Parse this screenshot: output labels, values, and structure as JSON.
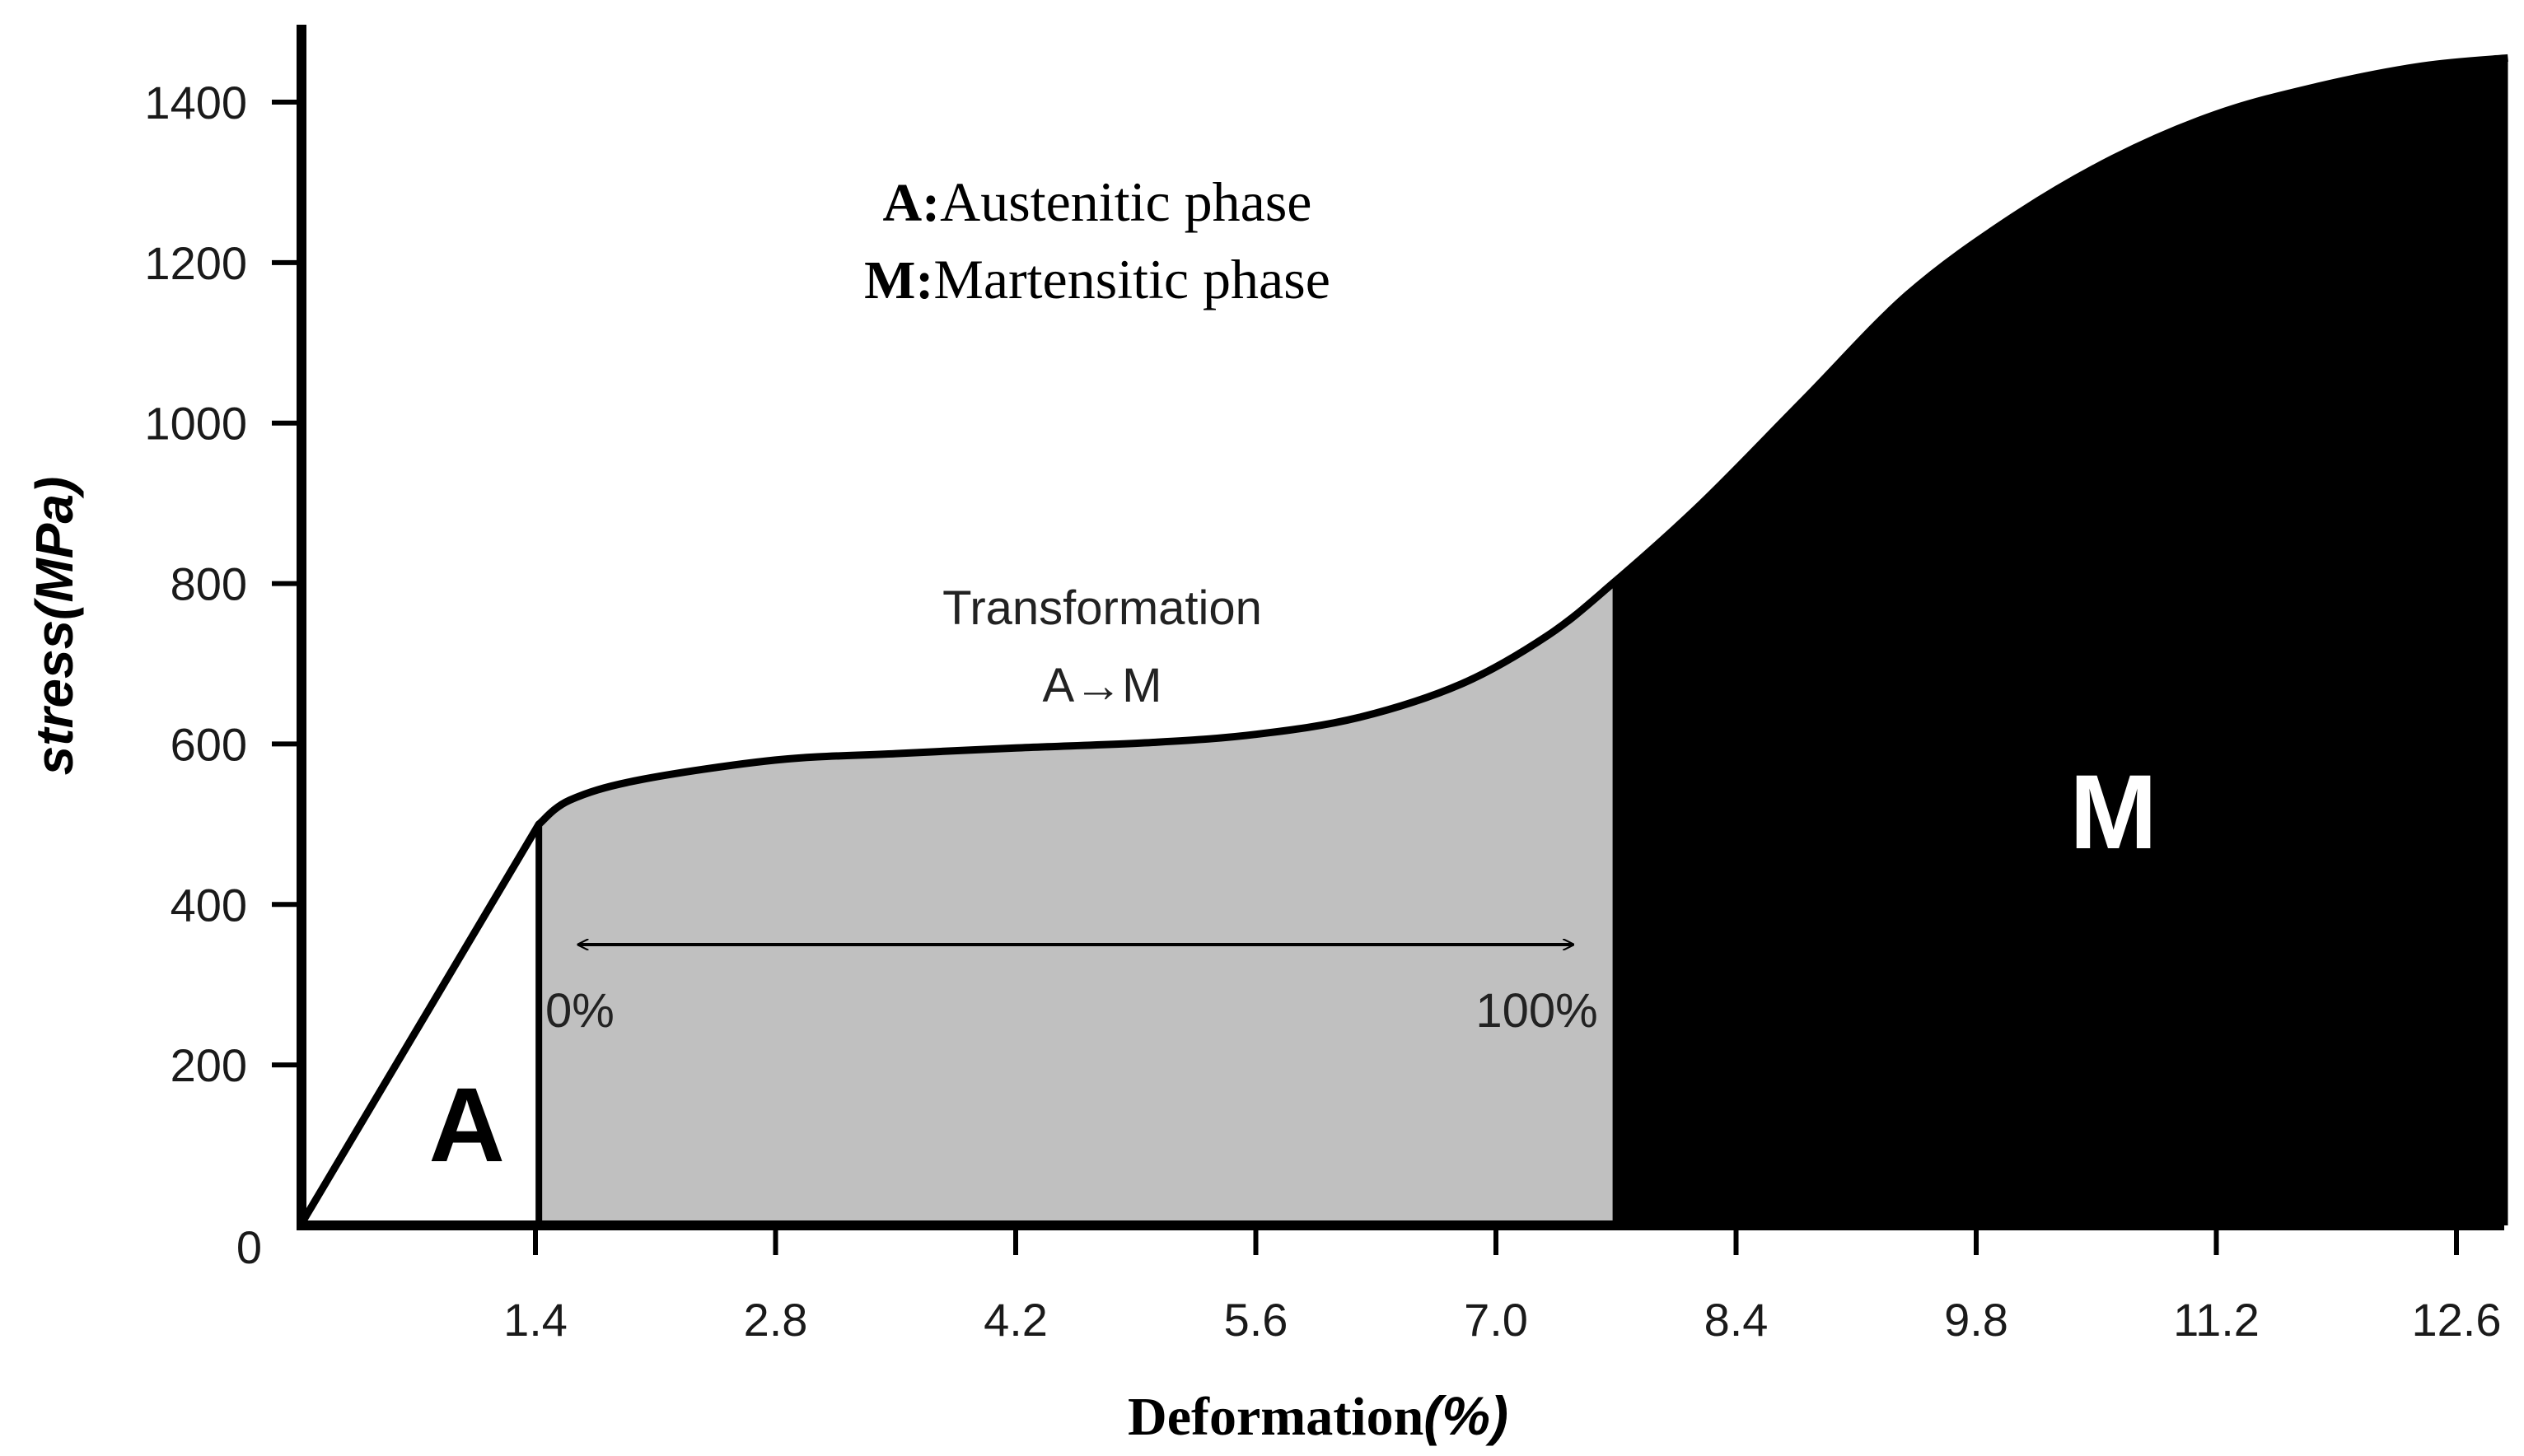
{
  "chart_data": {
    "type": "area",
    "title": "",
    "xlabel": "Deformation",
    "xlabel_unit": "(%)",
    "ylabel": "stress",
    "ylabel_unit": "(MPa)",
    "xlim": [
      0,
      13.1
    ],
    "ylim": [
      0,
      1500
    ],
    "x_ticks": [
      1.4,
      2.8,
      4.2,
      5.6,
      7.0,
      8.4,
      9.8,
      11.2,
      12.6
    ],
    "x_tick_labels": [
      "1.4",
      "2.8",
      "4.2",
      "5.6",
      "7.0",
      "8.4",
      "9.8",
      "11.2",
      "12.6"
    ],
    "y_ticks": [
      0,
      200,
      400,
      600,
      800,
      1000,
      1200,
      1400
    ],
    "y_tick_labels": [
      "0",
      "200",
      "400",
      "600",
      "800",
      "1000",
      "1200",
      "1400"
    ],
    "grid": false,
    "curve": {
      "x": [
        0.03,
        1.42,
        1.6,
        2.0,
        2.8,
        3.5,
        4.2,
        5.0,
        5.6,
        6.2,
        6.8,
        7.3,
        7.68,
        8.2,
        8.8,
        9.4,
        10.0,
        10.6,
        11.2,
        11.8,
        12.4,
        12.9
      ],
      "y": [
        0,
        500,
        530,
        555,
        580,
        588,
        595,
        602,
        612,
        633,
        675,
        735,
        800,
        900,
        1030,
        1160,
        1255,
        1330,
        1385,
        1420,
        1445,
        1455
      ]
    },
    "regions": [
      {
        "label": "A",
        "name": "Austenitic phase",
        "x_range": [
          0.03,
          1.42
        ],
        "fill": "#ffffff"
      },
      {
        "label": "Transformation A→M",
        "x_range": [
          1.42,
          7.68
        ],
        "fill": "#c0c0c0"
      },
      {
        "label": "M",
        "name": "Martensitic phase",
        "x_range": [
          7.68,
          12.9
        ],
        "fill": "#000000"
      }
    ],
    "legend": [
      {
        "key": "A",
        "sep": ":",
        "text": "Austenitic phase"
      },
      {
        "key": "M",
        "sep": ":",
        "text": "Martensitic phase"
      }
    ],
    "annotations": {
      "transformation_line1": "Transformation",
      "transformation_line2": "A→M",
      "arrow_start_label": "0%",
      "arrow_end_label": "100%",
      "arrow_y": 350,
      "arrow_x_range": [
        1.65,
        7.45
      ],
      "region_a_label": "A",
      "region_m_label": "M"
    }
  }
}
